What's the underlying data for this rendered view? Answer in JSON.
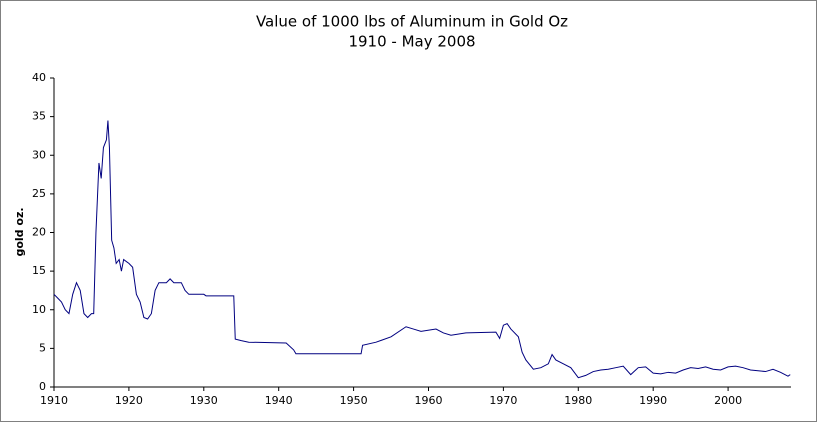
{
  "chart_data": {
    "type": "line",
    "title": "Value of 1000 lbs of Aluminum in Gold Oz",
    "subtitle": "1910 - May 2008",
    "y_label": "gold oz.",
    "x": [
      1910,
      1910.5,
      1911,
      1911.5,
      1912,
      1912.5,
      1913,
      1913.5,
      1914,
      1914.5,
      1915,
      1915.3,
      1915.6,
      1916,
      1916.3,
      1916.6,
      1917,
      1917.2,
      1917.4,
      1917.7,
      1918,
      1918.3,
      1918.7,
      1919,
      1919.3,
      1920,
      1920.5,
      1921,
      1921.5,
      1922,
      1922.5,
      1923,
      1923.5,
      1924,
      1925,
      1925.5,
      1926,
      1927,
      1927.5,
      1928,
      1930,
      1930.3,
      1934,
      1934.2,
      1935,
      1936,
      1941,
      1942,
      1942.3,
      1951,
      1951.2,
      1953,
      1955,
      1957,
      1958,
      1959,
      1961,
      1962,
      1963,
      1965,
      1969,
      1969.5,
      1970,
      1970.5,
      1971,
      1972,
      1972.5,
      1973,
      1974,
      1975,
      1976,
      1976.5,
      1977,
      1978,
      1979,
      1980,
      1981,
      1982,
      1983,
      1984,
      1985,
      1986,
      1987,
      1988,
      1989,
      1990,
      1991,
      1992,
      1993,
      1994,
      1995,
      1996,
      1997,
      1998,
      1999,
      2000,
      2001,
      2002,
      2003,
      2004,
      2005,
      2006,
      2007,
      2008,
      2008.3
    ],
    "series": [
      {
        "name": "Aluminum in gold oz",
        "color": "#000080",
        "values": [
          12,
          11.5,
          11,
          10,
          9.5,
          12,
          13.5,
          12.5,
          9.5,
          9,
          9.5,
          9.5,
          20,
          29,
          27,
          31,
          32,
          34.5,
          31,
          19,
          18,
          16,
          16.5,
          15,
          16.5,
          16,
          15.5,
          12,
          11,
          9,
          8.8,
          9.5,
          12.5,
          13.5,
          13.5,
          14,
          13.5,
          13.5,
          12.5,
          12,
          12,
          11.8,
          11.8,
          6.2,
          6,
          5.8,
          5.7,
          4.8,
          4.3,
          4.3,
          5.4,
          5.8,
          6.5,
          7.8,
          7.5,
          7.2,
          7.5,
          7,
          6.7,
          7,
          7.1,
          6.3,
          8,
          8.2,
          7.5,
          6.5,
          4.5,
          3.5,
          2.3,
          2.5,
          3,
          4.2,
          3.5,
          3,
          2.5,
          1.2,
          1.5,
          2,
          2.2,
          2.3,
          2.5,
          2.7,
          1.6,
          2.5,
          2.6,
          1.8,
          1.7,
          1.9,
          1.8,
          2.2,
          2.5,
          2.4,
          2.6,
          2.3,
          2.2,
          2.6,
          2.7,
          2.5,
          2.2,
          2.1,
          2,
          2.3,
          1.9,
          1.4,
          1.6
        ]
      }
    ],
    "xlim": [
      1910,
      2008.4
    ],
    "xticks": [
      1910,
      1920,
      1930,
      1940,
      1950,
      1960,
      1970,
      1980,
      1990,
      2000
    ],
    "ylim": [
      0,
      40
    ],
    "yticks": [
      0,
      5,
      10,
      15,
      20,
      25,
      30,
      35,
      40
    ],
    "grid": false,
    "legend": false
  }
}
